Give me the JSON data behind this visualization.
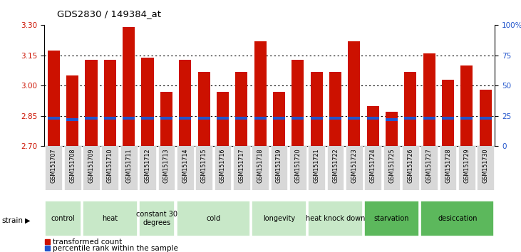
{
  "title": "GDS2830 / 149384_at",
  "samples": [
    "GSM151707",
    "GSM151708",
    "GSM151709",
    "GSM151710",
    "GSM151711",
    "GSM151712",
    "GSM151713",
    "GSM151714",
    "GSM151715",
    "GSM151716",
    "GSM151717",
    "GSM151718",
    "GSM151719",
    "GSM151720",
    "GSM151721",
    "GSM151722",
    "GSM151723",
    "GSM151724",
    "GSM151725",
    "GSM151726",
    "GSM151727",
    "GSM151728",
    "GSM151729",
    "GSM151730"
  ],
  "bar_values": [
    3.175,
    3.05,
    3.13,
    3.13,
    3.29,
    3.14,
    2.97,
    3.13,
    3.07,
    2.97,
    3.07,
    3.22,
    2.97,
    3.13,
    3.07,
    3.07,
    3.22,
    2.9,
    2.87,
    3.07,
    3.16,
    3.03,
    3.1,
    2.98
  ],
  "blue_values": [
    2.84,
    2.832,
    2.84,
    2.84,
    2.84,
    2.84,
    2.84,
    2.84,
    2.84,
    2.84,
    2.84,
    2.84,
    2.84,
    2.84,
    2.84,
    2.84,
    2.84,
    2.84,
    2.832,
    2.84,
    2.84,
    2.84,
    2.84,
    2.84
  ],
  "groups": [
    {
      "label": "control",
      "start": 0,
      "end": 2,
      "color": "#c8e8c8"
    },
    {
      "label": "heat",
      "start": 2,
      "end": 5,
      "color": "#c8e8c8"
    },
    {
      "label": "constant 30\ndegrees",
      "start": 5,
      "end": 7,
      "color": "#c8e8c8"
    },
    {
      "label": "cold",
      "start": 7,
      "end": 11,
      "color": "#c8e8c8"
    },
    {
      "label": "longevity",
      "start": 11,
      "end": 14,
      "color": "#c8e8c8"
    },
    {
      "label": "heat knock down",
      "start": 14,
      "end": 17,
      "color": "#c8e8c8"
    },
    {
      "label": "starvation",
      "start": 17,
      "end": 20,
      "color": "#5cb85c"
    },
    {
      "label": "desiccation",
      "start": 20,
      "end": 24,
      "color": "#5cb85c"
    }
  ],
  "ylim_left": [
    2.7,
    3.3
  ],
  "yticks_left": [
    2.7,
    2.85,
    3.0,
    3.15,
    3.3
  ],
  "ylim_right": [
    0,
    100
  ],
  "yticks_right": [
    0,
    25,
    50,
    75,
    100
  ],
  "bar_color": "#cc1100",
  "blue_color": "#2255cc",
  "bg_color": "#ffffff",
  "tick_color_left": "#cc1100",
  "tick_color_right": "#2255cc"
}
